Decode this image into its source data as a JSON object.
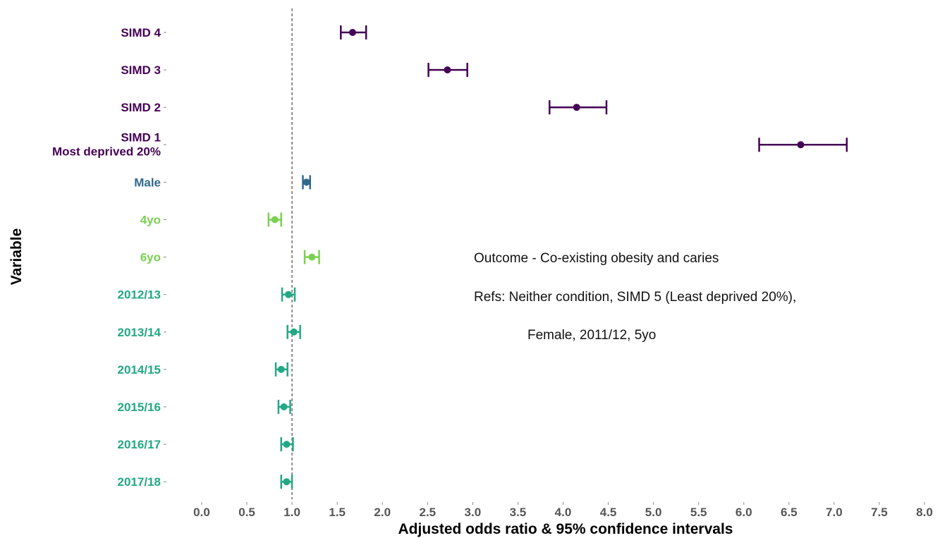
{
  "chart_data": {
    "type": "forest",
    "xlabel": "Adjusted odds ratio & 95% confidence intervals",
    "ylabel": "Variable",
    "xlim": [
      0,
      8
    ],
    "xticks": [
      "0.0",
      "0.5",
      "1.0",
      "1.5",
      "2.0",
      "2.5",
      "3.0",
      "3.5",
      "4.0",
      "4.5",
      "5.0",
      "5.5",
      "6.0",
      "6.5",
      "7.0",
      "7.5",
      "8.0"
    ],
    "reference_line": 1.0,
    "grid": false,
    "rows": [
      {
        "label": "SIMD 4",
        "label2": "",
        "estimate": 1.67,
        "lower": 1.54,
        "upper": 1.82,
        "color": "#440154"
      },
      {
        "label": "SIMD 3",
        "label2": "",
        "estimate": 2.72,
        "lower": 2.51,
        "upper": 2.94,
        "color": "#440154"
      },
      {
        "label": "SIMD 2",
        "label2": "",
        "estimate": 4.15,
        "lower": 3.85,
        "upper": 4.48,
        "color": "#440154"
      },
      {
        "label": "SIMD 1",
        "label2": "Most deprived 20%",
        "estimate": 6.63,
        "lower": 6.17,
        "upper": 7.14,
        "color": "#440154"
      },
      {
        "label": "Male",
        "label2": "",
        "estimate": 1.16,
        "lower": 1.12,
        "upper": 1.2,
        "color": "#31688E"
      },
      {
        "label": "4yo",
        "label2": "",
        "estimate": 0.81,
        "lower": 0.74,
        "upper": 0.88,
        "color": "#7AD151"
      },
      {
        "label": "6yo",
        "label2": "",
        "estimate": 1.22,
        "lower": 1.14,
        "upper": 1.3,
        "color": "#7AD151"
      },
      {
        "label": "2012/13",
        "label2": "",
        "estimate": 0.96,
        "lower": 0.89,
        "upper": 1.03,
        "color": "#22A884"
      },
      {
        "label": "2013/14",
        "label2": "",
        "estimate": 1.02,
        "lower": 0.95,
        "upper": 1.09,
        "color": "#22A884"
      },
      {
        "label": "2014/15",
        "label2": "",
        "estimate": 0.88,
        "lower": 0.82,
        "upper": 0.95,
        "color": "#22A884"
      },
      {
        "label": "2015/16",
        "label2": "",
        "estimate": 0.91,
        "lower": 0.85,
        "upper": 0.98,
        "color": "#22A884"
      },
      {
        "label": "2016/17",
        "label2": "",
        "estimate": 0.94,
        "lower": 0.88,
        "upper": 1.01,
        "color": "#22A884"
      },
      {
        "label": "2017/18",
        "label2": "",
        "estimate": 0.94,
        "lower": 0.88,
        "upper": 1.0,
        "color": "#22A884"
      }
    ],
    "annotations": [
      "Outcome - Co-existing obesity and caries",
      "Refs: Neither condition, SIMD 5 (Least deprived 20%),",
      "Female, 2011/12, 5yo"
    ]
  }
}
